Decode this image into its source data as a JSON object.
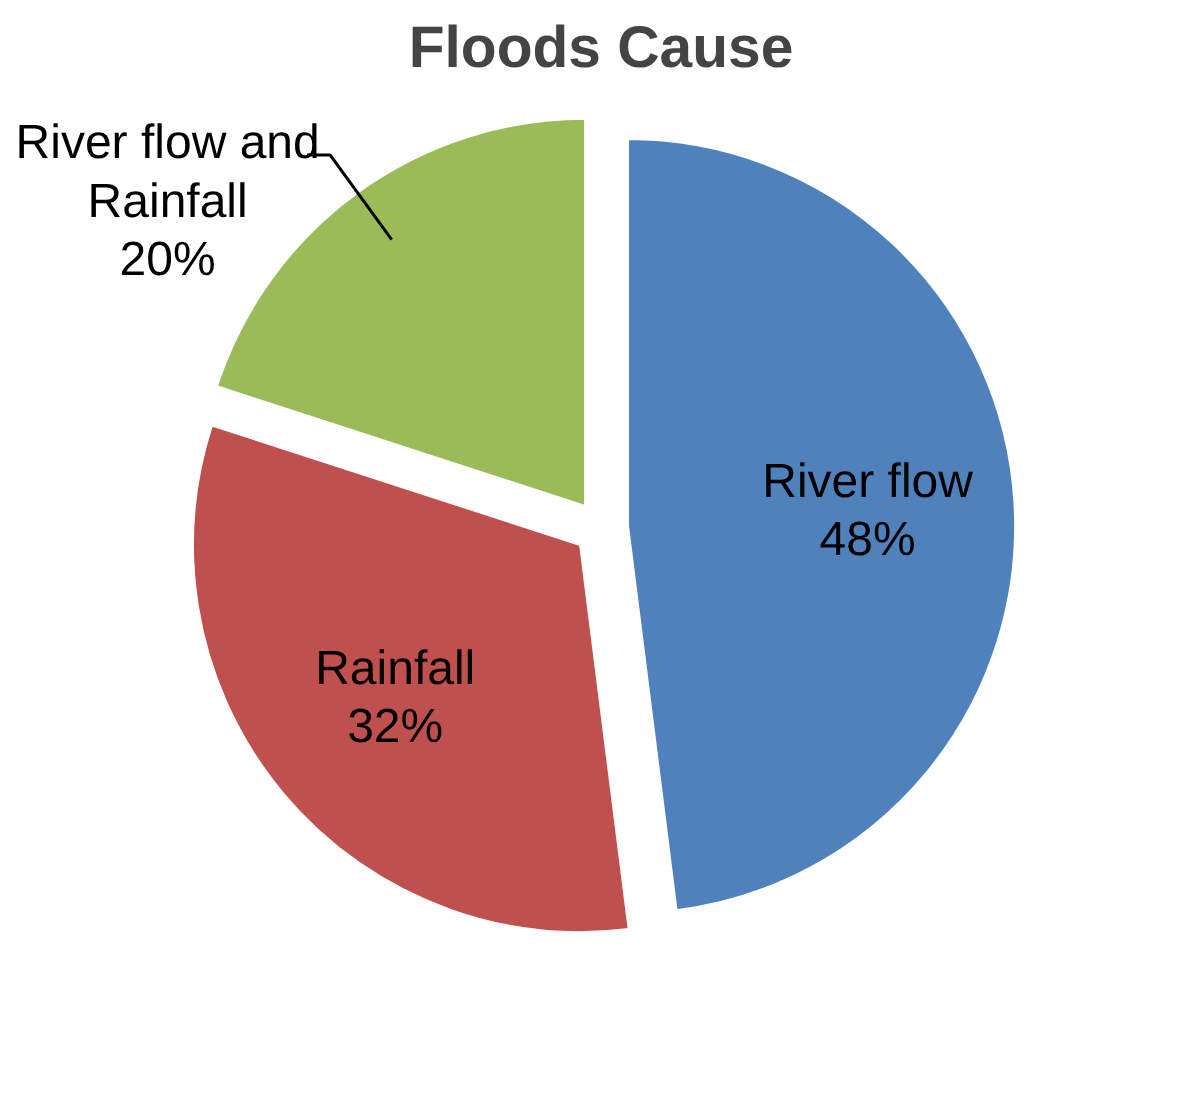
{
  "chart_data": {
    "type": "pie",
    "title": "Floods Cause",
    "categories": [
      "River flow",
      "Rainfall",
      "River flow and Rainfall"
    ],
    "values": [
      48,
      32,
      20
    ],
    "value_labels": [
      "48%",
      "32%",
      "20%"
    ],
    "colors": [
      "#4f81bd",
      "#c0504d",
      "#9bbb59"
    ],
    "legend": false
  }
}
